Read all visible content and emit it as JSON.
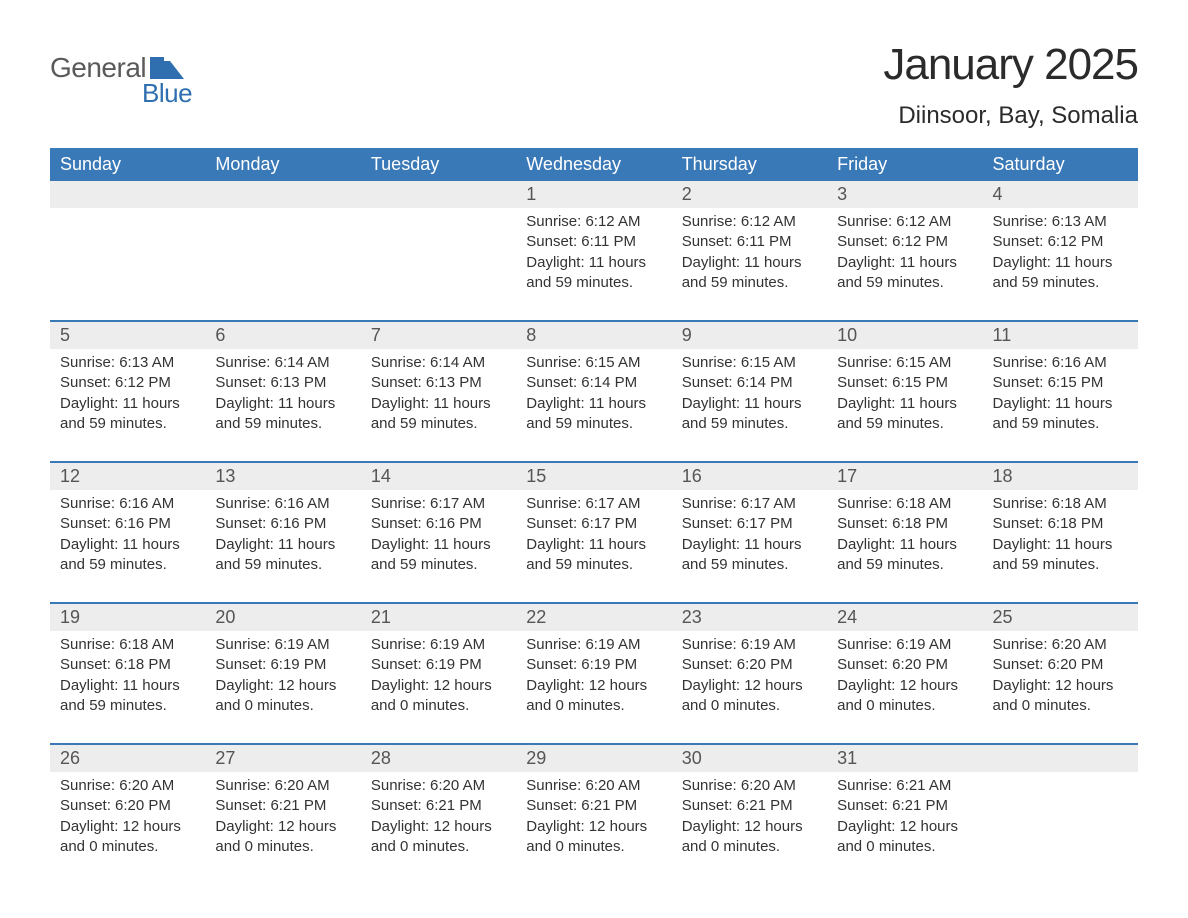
{
  "brand": {
    "text_top": "General",
    "text_bottom": "Blue",
    "logo_color": "#2f6fb0",
    "text_top_color": "#5a5a5a"
  },
  "title": {
    "month": "January 2025",
    "location": "Diinsoor, Bay, Somalia",
    "title_fontsize": 44,
    "location_fontsize": 24
  },
  "colors": {
    "header_bg": "#3a79b7",
    "header_text": "#ffffff",
    "daynum_bg": "#ededed",
    "week_border": "#3a79b7",
    "body_text": "#333333",
    "background": "#ffffff"
  },
  "typography": {
    "body_fontsize": 15,
    "header_fontsize": 18,
    "daynum_fontsize": 18
  },
  "layout": {
    "columns": 7,
    "rows": 5
  },
  "weekdays": [
    "Sunday",
    "Monday",
    "Tuesday",
    "Wednesday",
    "Thursday",
    "Friday",
    "Saturday"
  ],
  "weeks": [
    {
      "days": [
        {
          "num": "",
          "sunrise": "",
          "sunset": "",
          "daylight": ""
        },
        {
          "num": "",
          "sunrise": "",
          "sunset": "",
          "daylight": ""
        },
        {
          "num": "",
          "sunrise": "",
          "sunset": "",
          "daylight": ""
        },
        {
          "num": "1",
          "sunrise": "Sunrise: 6:12 AM",
          "sunset": "Sunset: 6:11 PM",
          "daylight": "Daylight: 11 hours and 59 minutes."
        },
        {
          "num": "2",
          "sunrise": "Sunrise: 6:12 AM",
          "sunset": "Sunset: 6:11 PM",
          "daylight": "Daylight: 11 hours and 59 minutes."
        },
        {
          "num": "3",
          "sunrise": "Sunrise: 6:12 AM",
          "sunset": "Sunset: 6:12 PM",
          "daylight": "Daylight: 11 hours and 59 minutes."
        },
        {
          "num": "4",
          "sunrise": "Sunrise: 6:13 AM",
          "sunset": "Sunset: 6:12 PM",
          "daylight": "Daylight: 11 hours and 59 minutes."
        }
      ]
    },
    {
      "days": [
        {
          "num": "5",
          "sunrise": "Sunrise: 6:13 AM",
          "sunset": "Sunset: 6:12 PM",
          "daylight": "Daylight: 11 hours and 59 minutes."
        },
        {
          "num": "6",
          "sunrise": "Sunrise: 6:14 AM",
          "sunset": "Sunset: 6:13 PM",
          "daylight": "Daylight: 11 hours and 59 minutes."
        },
        {
          "num": "7",
          "sunrise": "Sunrise: 6:14 AM",
          "sunset": "Sunset: 6:13 PM",
          "daylight": "Daylight: 11 hours and 59 minutes."
        },
        {
          "num": "8",
          "sunrise": "Sunrise: 6:15 AM",
          "sunset": "Sunset: 6:14 PM",
          "daylight": "Daylight: 11 hours and 59 minutes."
        },
        {
          "num": "9",
          "sunrise": "Sunrise: 6:15 AM",
          "sunset": "Sunset: 6:14 PM",
          "daylight": "Daylight: 11 hours and 59 minutes."
        },
        {
          "num": "10",
          "sunrise": "Sunrise: 6:15 AM",
          "sunset": "Sunset: 6:15 PM",
          "daylight": "Daylight: 11 hours and 59 minutes."
        },
        {
          "num": "11",
          "sunrise": "Sunrise: 6:16 AM",
          "sunset": "Sunset: 6:15 PM",
          "daylight": "Daylight: 11 hours and 59 minutes."
        }
      ]
    },
    {
      "days": [
        {
          "num": "12",
          "sunrise": "Sunrise: 6:16 AM",
          "sunset": "Sunset: 6:16 PM",
          "daylight": "Daylight: 11 hours and 59 minutes."
        },
        {
          "num": "13",
          "sunrise": "Sunrise: 6:16 AM",
          "sunset": "Sunset: 6:16 PM",
          "daylight": "Daylight: 11 hours and 59 minutes."
        },
        {
          "num": "14",
          "sunrise": "Sunrise: 6:17 AM",
          "sunset": "Sunset: 6:16 PM",
          "daylight": "Daylight: 11 hours and 59 minutes."
        },
        {
          "num": "15",
          "sunrise": "Sunrise: 6:17 AM",
          "sunset": "Sunset: 6:17 PM",
          "daylight": "Daylight: 11 hours and 59 minutes."
        },
        {
          "num": "16",
          "sunrise": "Sunrise: 6:17 AM",
          "sunset": "Sunset: 6:17 PM",
          "daylight": "Daylight: 11 hours and 59 minutes."
        },
        {
          "num": "17",
          "sunrise": "Sunrise: 6:18 AM",
          "sunset": "Sunset: 6:18 PM",
          "daylight": "Daylight: 11 hours and 59 minutes."
        },
        {
          "num": "18",
          "sunrise": "Sunrise: 6:18 AM",
          "sunset": "Sunset: 6:18 PM",
          "daylight": "Daylight: 11 hours and 59 minutes."
        }
      ]
    },
    {
      "days": [
        {
          "num": "19",
          "sunrise": "Sunrise: 6:18 AM",
          "sunset": "Sunset: 6:18 PM",
          "daylight": "Daylight: 11 hours and 59 minutes."
        },
        {
          "num": "20",
          "sunrise": "Sunrise: 6:19 AM",
          "sunset": "Sunset: 6:19 PM",
          "daylight": "Daylight: 12 hours and 0 minutes."
        },
        {
          "num": "21",
          "sunrise": "Sunrise: 6:19 AM",
          "sunset": "Sunset: 6:19 PM",
          "daylight": "Daylight: 12 hours and 0 minutes."
        },
        {
          "num": "22",
          "sunrise": "Sunrise: 6:19 AM",
          "sunset": "Sunset: 6:19 PM",
          "daylight": "Daylight: 12 hours and 0 minutes."
        },
        {
          "num": "23",
          "sunrise": "Sunrise: 6:19 AM",
          "sunset": "Sunset: 6:20 PM",
          "daylight": "Daylight: 12 hours and 0 minutes."
        },
        {
          "num": "24",
          "sunrise": "Sunrise: 6:19 AM",
          "sunset": "Sunset: 6:20 PM",
          "daylight": "Daylight: 12 hours and 0 minutes."
        },
        {
          "num": "25",
          "sunrise": "Sunrise: 6:20 AM",
          "sunset": "Sunset: 6:20 PM",
          "daylight": "Daylight: 12 hours and 0 minutes."
        }
      ]
    },
    {
      "days": [
        {
          "num": "26",
          "sunrise": "Sunrise: 6:20 AM",
          "sunset": "Sunset: 6:20 PM",
          "daylight": "Daylight: 12 hours and 0 minutes."
        },
        {
          "num": "27",
          "sunrise": "Sunrise: 6:20 AM",
          "sunset": "Sunset: 6:21 PM",
          "daylight": "Daylight: 12 hours and 0 minutes."
        },
        {
          "num": "28",
          "sunrise": "Sunrise: 6:20 AM",
          "sunset": "Sunset: 6:21 PM",
          "daylight": "Daylight: 12 hours and 0 minutes."
        },
        {
          "num": "29",
          "sunrise": "Sunrise: 6:20 AM",
          "sunset": "Sunset: 6:21 PM",
          "daylight": "Daylight: 12 hours and 0 minutes."
        },
        {
          "num": "30",
          "sunrise": "Sunrise: 6:20 AM",
          "sunset": "Sunset: 6:21 PM",
          "daylight": "Daylight: 12 hours and 0 minutes."
        },
        {
          "num": "31",
          "sunrise": "Sunrise: 6:21 AM",
          "sunset": "Sunset: 6:21 PM",
          "daylight": "Daylight: 12 hours and 0 minutes."
        },
        {
          "num": "",
          "sunrise": "",
          "sunset": "",
          "daylight": ""
        }
      ]
    }
  ]
}
